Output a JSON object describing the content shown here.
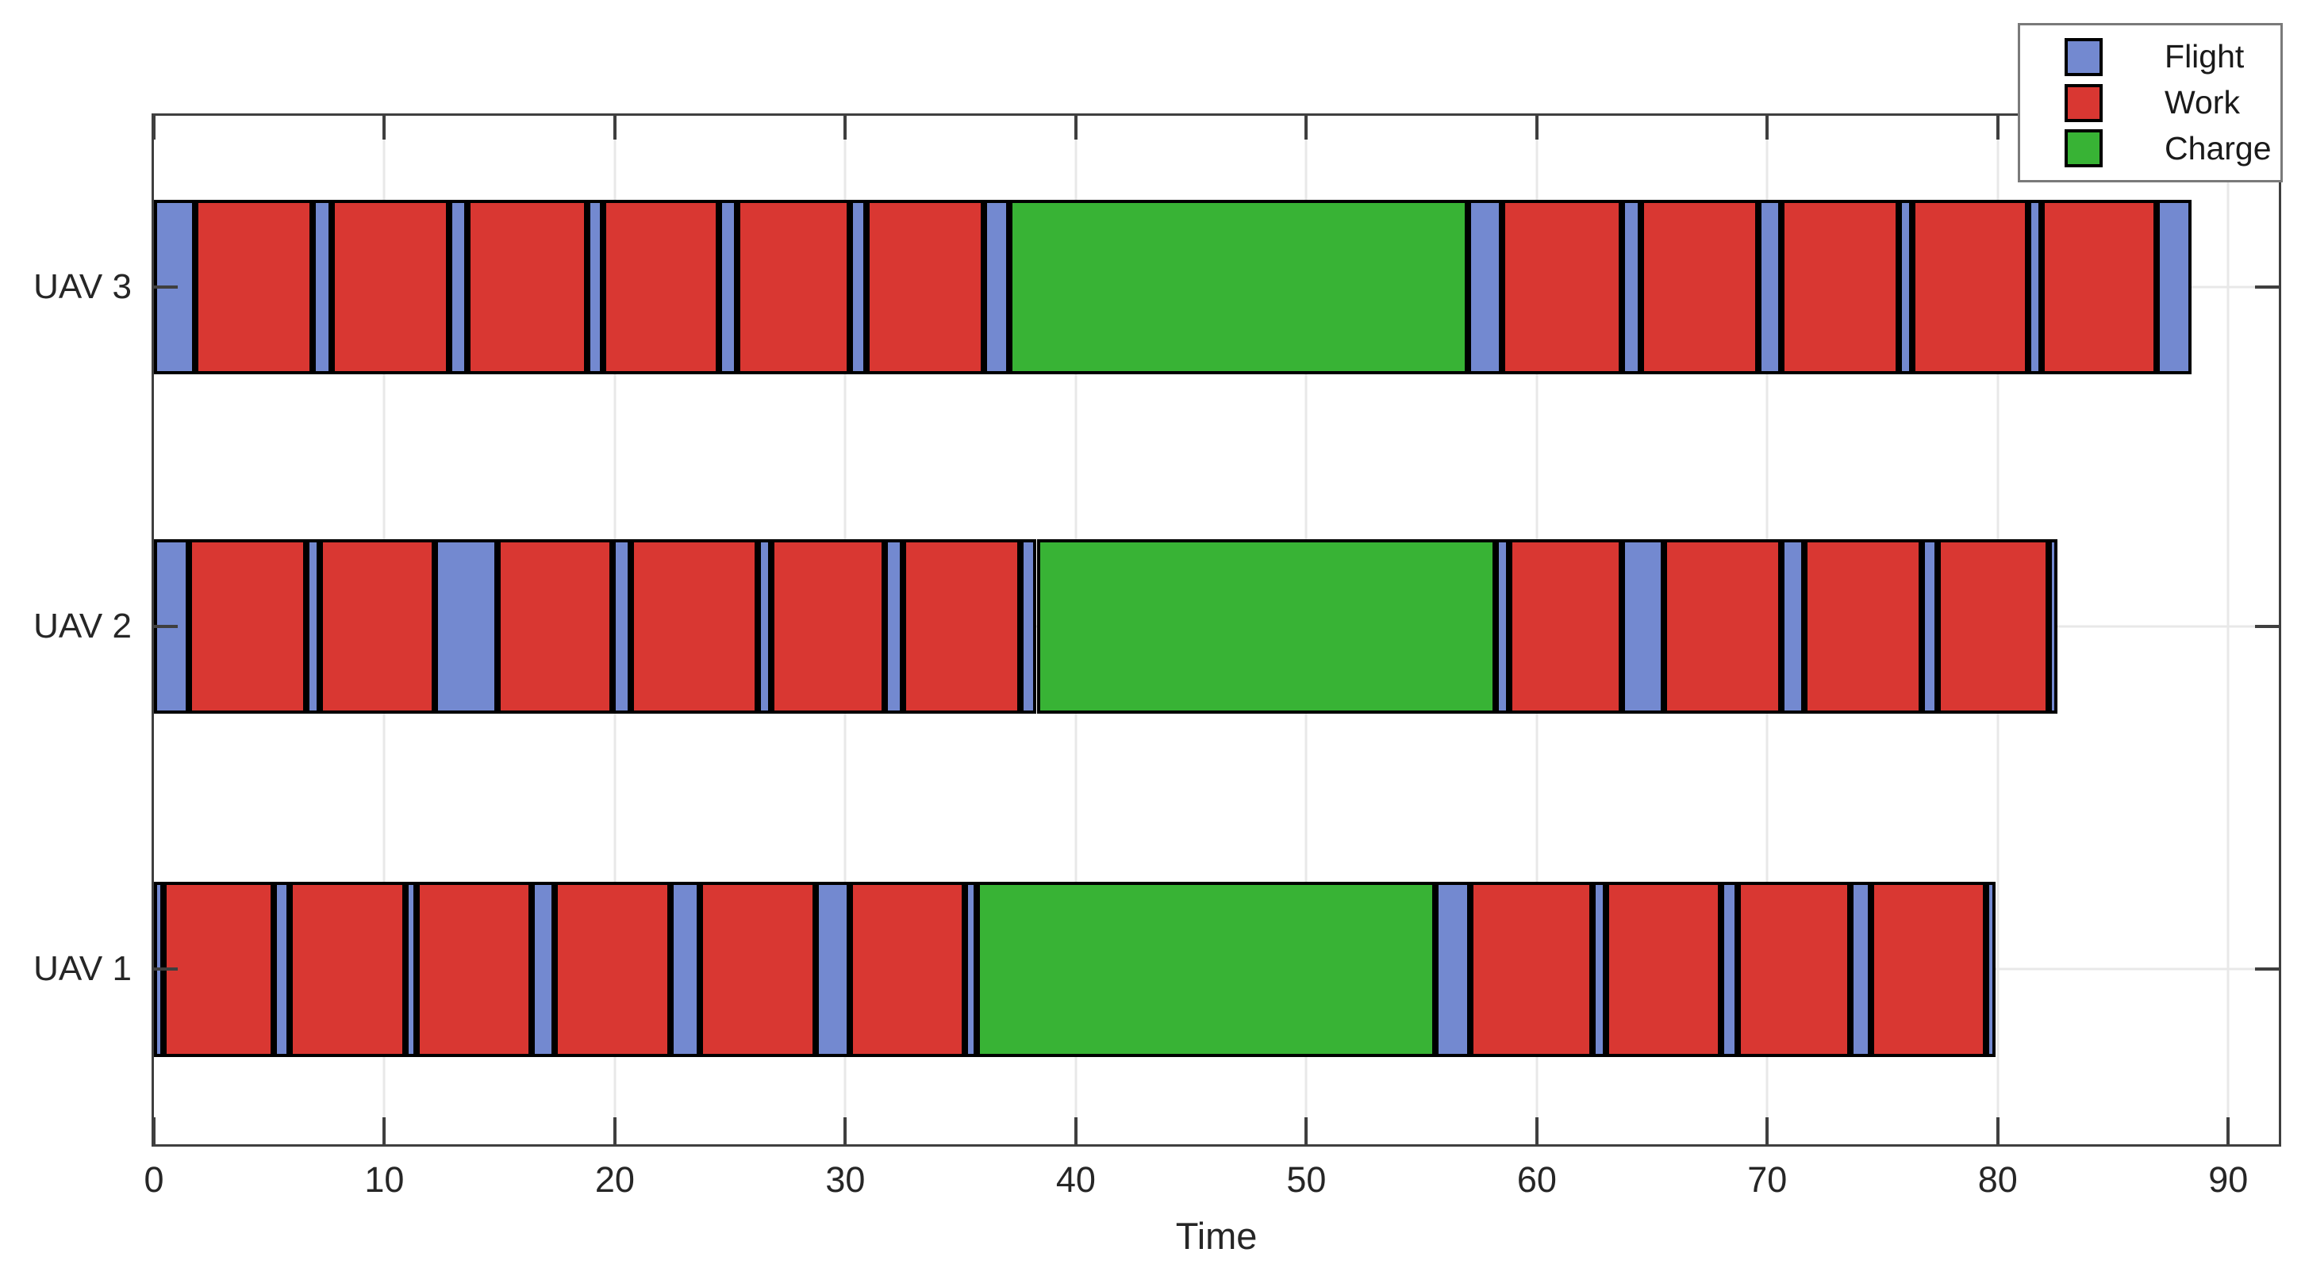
{
  "chart_data": {
    "type": "bar",
    "subtype": "horizontal-gantt-schedule",
    "title": "",
    "xlabel": "Time",
    "ylabel": "",
    "xlim": [
      0,
      92.2
    ],
    "x_ticks": [
      0,
      10,
      20,
      30,
      40,
      50,
      60,
      70,
      80,
      90
    ],
    "grid": true,
    "legend": {
      "position": "top-right",
      "entries": [
        {
          "label": "Flight",
          "color": "#7389D0"
        },
        {
          "label": "Work",
          "color": "#D93732"
        },
        {
          "label": "Charge",
          "color": "#38B335"
        }
      ]
    },
    "colors": {
      "Flight": "#7389D0",
      "Work": "#D93732",
      "Charge": "#38B335",
      "segment_border": "#000000",
      "axis": "#3f3f3f",
      "gridline": "#e8e8e8",
      "text": "#262626"
    },
    "rows": [
      {
        "label": "UAV 3",
        "segments": [
          {
            "type": "Flight",
            "start": 0.0,
            "end": 1.8
          },
          {
            "type": "Work",
            "start": 1.8,
            "end": 6.9
          },
          {
            "type": "Flight",
            "start": 6.9,
            "end": 7.7
          },
          {
            "type": "Work",
            "start": 7.7,
            "end": 12.8
          },
          {
            "type": "Flight",
            "start": 12.8,
            "end": 13.6
          },
          {
            "type": "Work",
            "start": 13.6,
            "end": 18.8
          },
          {
            "type": "Flight",
            "start": 18.8,
            "end": 19.5
          },
          {
            "type": "Work",
            "start": 19.5,
            "end": 24.5
          },
          {
            "type": "Flight",
            "start": 24.5,
            "end": 25.3
          },
          {
            "type": "Work",
            "start": 25.3,
            "end": 30.2
          },
          {
            "type": "Flight",
            "start": 30.2,
            "end": 30.9
          },
          {
            "type": "Work",
            "start": 30.9,
            "end": 36.0
          },
          {
            "type": "Flight",
            "start": 36.0,
            "end": 37.1
          },
          {
            "type": "Charge",
            "start": 37.1,
            "end": 57.0
          },
          {
            "type": "Flight",
            "start": 57.0,
            "end": 58.5
          },
          {
            "type": "Work",
            "start": 58.5,
            "end": 63.7
          },
          {
            "type": "Flight",
            "start": 63.7,
            "end": 64.5
          },
          {
            "type": "Work",
            "start": 64.5,
            "end": 69.6
          },
          {
            "type": "Flight",
            "start": 69.6,
            "end": 70.6
          },
          {
            "type": "Work",
            "start": 70.6,
            "end": 75.7
          },
          {
            "type": "Flight",
            "start": 75.7,
            "end": 76.3
          },
          {
            "type": "Work",
            "start": 76.3,
            "end": 81.3
          },
          {
            "type": "Flight",
            "start": 81.3,
            "end": 81.9
          },
          {
            "type": "Work",
            "start": 81.9,
            "end": 86.9
          },
          {
            "type": "Flight",
            "start": 86.9,
            "end": 88.4
          }
        ]
      },
      {
        "label": "UAV 2",
        "segments": [
          {
            "type": "Flight",
            "start": 0.0,
            "end": 1.5
          },
          {
            "type": "Work",
            "start": 1.5,
            "end": 6.6
          },
          {
            "type": "Flight",
            "start": 6.6,
            "end": 7.2
          },
          {
            "type": "Work",
            "start": 7.2,
            "end": 12.2
          },
          {
            "type": "Flight",
            "start": 12.2,
            "end": 14.9
          },
          {
            "type": "Work",
            "start": 14.9,
            "end": 19.9
          },
          {
            "type": "Flight",
            "start": 19.9,
            "end": 20.7
          },
          {
            "type": "Work",
            "start": 20.7,
            "end": 26.2
          },
          {
            "type": "Flight",
            "start": 26.2,
            "end": 26.8
          },
          {
            "type": "Work",
            "start": 26.8,
            "end": 31.7
          },
          {
            "type": "Flight",
            "start": 31.7,
            "end": 32.5
          },
          {
            "type": "Work",
            "start": 32.5,
            "end": 37.6
          },
          {
            "type": "Flight",
            "start": 37.6,
            "end": 38.3
          },
          {
            "type": "Charge",
            "start": 38.3,
            "end": 58.2
          },
          {
            "type": "Flight",
            "start": 58.2,
            "end": 58.8
          },
          {
            "type": "Work",
            "start": 58.8,
            "end": 63.7
          },
          {
            "type": "Flight",
            "start": 63.7,
            "end": 65.5
          },
          {
            "type": "Work",
            "start": 65.5,
            "end": 70.6
          },
          {
            "type": "Flight",
            "start": 70.6,
            "end": 71.6
          },
          {
            "type": "Work",
            "start": 71.6,
            "end": 76.7
          },
          {
            "type": "Flight",
            "start": 76.7,
            "end": 77.4
          },
          {
            "type": "Work",
            "start": 77.4,
            "end": 82.2
          },
          {
            "type": "Flight",
            "start": 82.2,
            "end": 82.6
          }
        ]
      },
      {
        "label": "UAV 1",
        "segments": [
          {
            "type": "Flight",
            "start": 0.0,
            "end": 0.4
          },
          {
            "type": "Work",
            "start": 0.4,
            "end": 5.2
          },
          {
            "type": "Flight",
            "start": 5.2,
            "end": 5.9
          },
          {
            "type": "Work",
            "start": 5.9,
            "end": 10.9
          },
          {
            "type": "Flight",
            "start": 10.9,
            "end": 11.4
          },
          {
            "type": "Work",
            "start": 11.4,
            "end": 16.4
          },
          {
            "type": "Flight",
            "start": 16.4,
            "end": 17.4
          },
          {
            "type": "Work",
            "start": 17.4,
            "end": 22.4
          },
          {
            "type": "Flight",
            "start": 22.4,
            "end": 23.7
          },
          {
            "type": "Work",
            "start": 23.7,
            "end": 28.7
          },
          {
            "type": "Flight",
            "start": 28.7,
            "end": 30.2
          },
          {
            "type": "Work",
            "start": 30.2,
            "end": 35.2
          },
          {
            "type": "Flight",
            "start": 35.2,
            "end": 35.7
          },
          {
            "type": "Charge",
            "start": 35.7,
            "end": 55.6
          },
          {
            "type": "Flight",
            "start": 55.6,
            "end": 57.1
          },
          {
            "type": "Work",
            "start": 57.1,
            "end": 62.4
          },
          {
            "type": "Flight",
            "start": 62.4,
            "end": 63.0
          },
          {
            "type": "Work",
            "start": 63.0,
            "end": 68.0
          },
          {
            "type": "Flight",
            "start": 68.0,
            "end": 68.7
          },
          {
            "type": "Work",
            "start": 68.7,
            "end": 73.6
          },
          {
            "type": "Flight",
            "start": 73.6,
            "end": 74.5
          },
          {
            "type": "Work",
            "start": 74.5,
            "end": 79.5
          },
          {
            "type": "Flight",
            "start": 79.5,
            "end": 79.9
          }
        ]
      }
    ],
    "layout": {
      "row_centers_pct": [
        16.65,
        49.65,
        83.0
      ],
      "row_height_pct": 17.0
    }
  }
}
